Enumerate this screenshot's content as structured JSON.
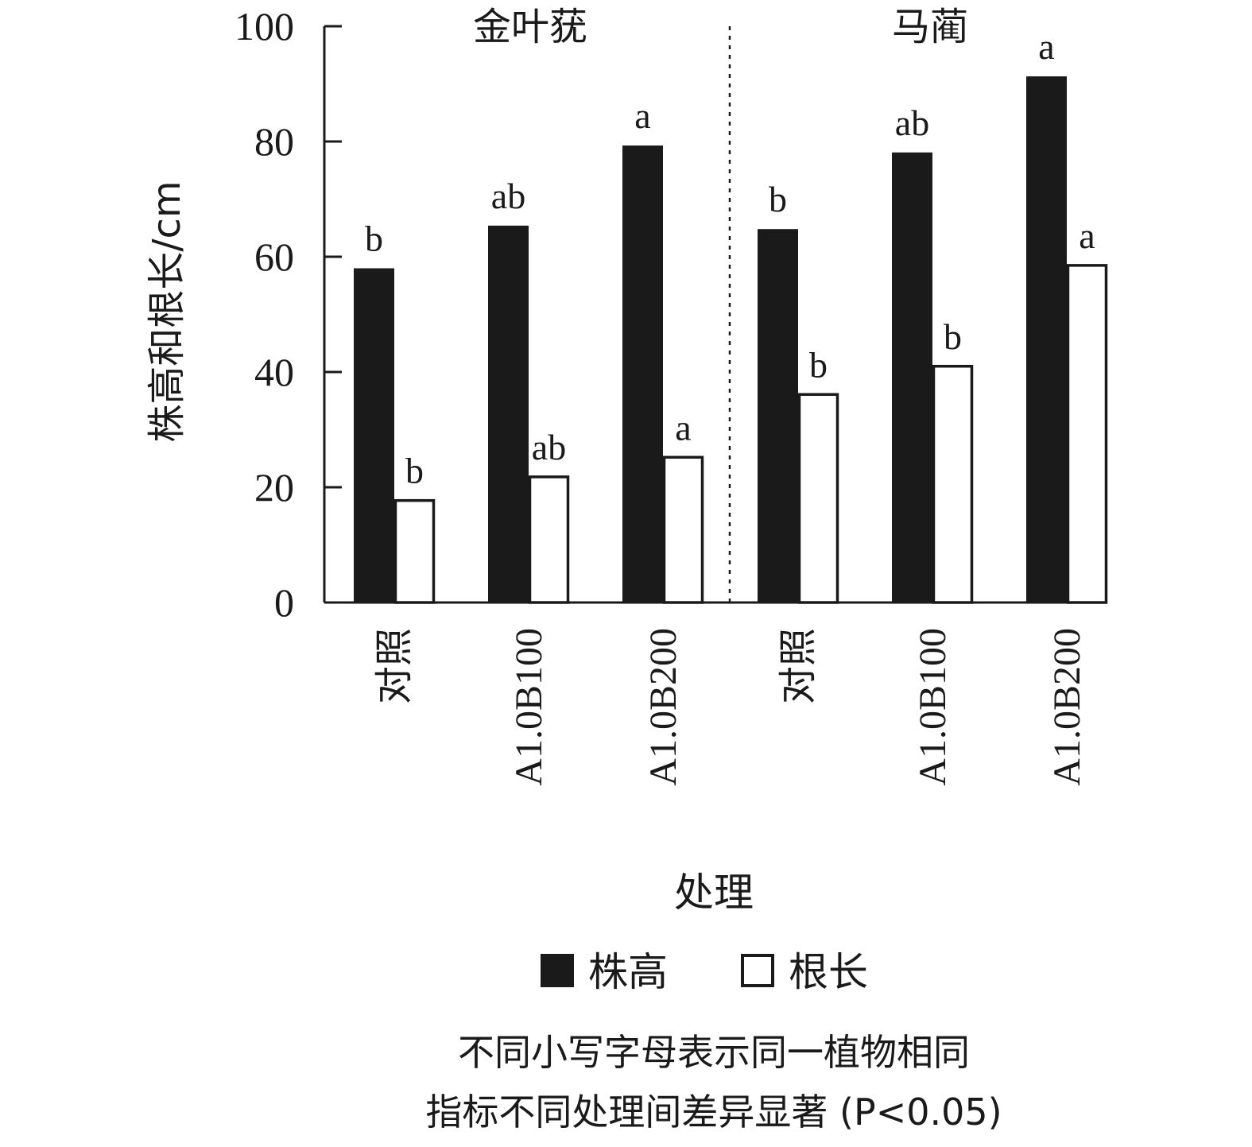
{
  "chart_data": {
    "type": "bar",
    "ylabel": "株高和根长/cm",
    "xlabel": "处理",
    "ylim": [
      0,
      100
    ],
    "yticks": [
      "0",
      "20",
      "40",
      "60",
      "80",
      "100"
    ],
    "groups": [
      {
        "name": "金叶莸",
        "categories": [
          "对照",
          "A1.0B100",
          "A1.0B200"
        ]
      },
      {
        "name": "马蔺",
        "categories": [
          "对照",
          "A1.0B100",
          "A1.0B200"
        ]
      }
    ],
    "categories": [
      "对照",
      "A1.0B100",
      "A1.0B200",
      "对照",
      "A1.0B100",
      "A1.0B200"
    ],
    "series": [
      {
        "name": "株高",
        "color": "#1a1a1a",
        "values": [
          58,
          65.4,
          79.3,
          64.8,
          78.1,
          91.3
        ],
        "labels": [
          "b",
          "ab",
          "a",
          "b",
          "ab",
          "a"
        ]
      },
      {
        "name": "根长",
        "color": "#ffffff",
        "values": [
          17.7,
          21.8,
          25.2,
          36.1,
          41.0,
          58.5
        ],
        "labels": [
          "b",
          "ab",
          "a",
          "b",
          "b",
          "a"
        ]
      }
    ],
    "legend_position": "bottom",
    "grid": false,
    "note": [
      "不同小写字母表示同一植物相同",
      "指标不同处理间差异显著 (P<0.05)"
    ]
  }
}
